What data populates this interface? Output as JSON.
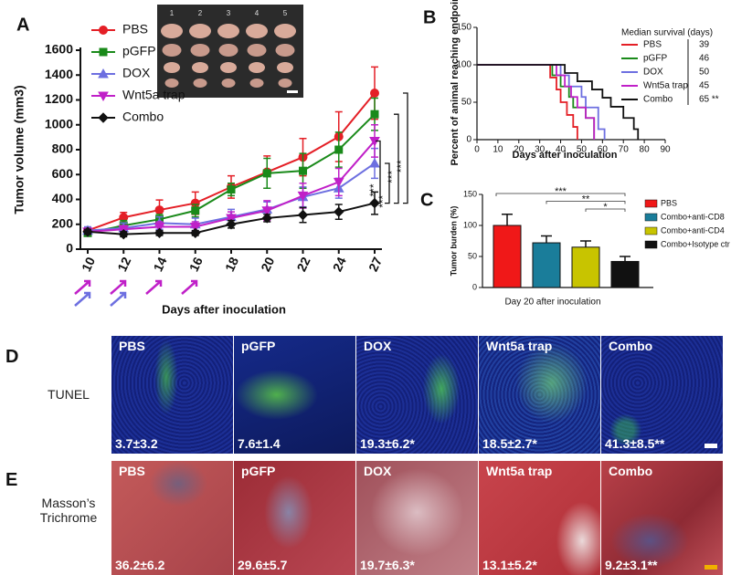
{
  "chart_data": [
    {
      "panel": "A",
      "type": "line",
      "ylabel": "Tumor volume (mm3)",
      "xlabel": "Days after inoculation",
      "categories": [
        "10",
        "12",
        "14",
        "16",
        "18",
        "20",
        "22",
        "24",
        "27"
      ],
      "ylim": [
        0,
        1600
      ],
      "yticks": [
        0,
        200,
        400,
        600,
        800,
        1000,
        1200,
        1400,
        1600
      ],
      "series": [
        {
          "name": "PBS",
          "color": "#e41f26",
          "marker": "circle",
          "values": [
            150,
            255,
            315,
            370,
            500,
            620,
            740,
            905,
            1255
          ],
          "errors": [
            25,
            40,
            80,
            90,
            90,
            130,
            150,
            200,
            210
          ]
        },
        {
          "name": "pGFP",
          "color": "#1a8a1a",
          "marker": "square",
          "values": [
            130,
            190,
            240,
            310,
            480,
            610,
            630,
            800,
            1085
          ],
          "errors": [
            20,
            40,
            40,
            50,
            50,
            120,
            140,
            140,
            130
          ]
        },
        {
          "name": "DOX",
          "color": "#6d6fe0",
          "marker": "triangle",
          "values": [
            150,
            170,
            210,
            200,
            260,
            320,
            420,
            490,
            690
          ],
          "errors": [
            30,
            40,
            50,
            50,
            60,
            60,
            80,
            80,
            120
          ]
        },
        {
          "name": "Wnt5a trap",
          "color": "#c020c8",
          "marker": "triangle-down",
          "values": [
            140,
            160,
            180,
            180,
            250,
            310,
            430,
            540,
            870
          ],
          "errors": [
            20,
            30,
            40,
            40,
            50,
            80,
            100,
            110,
            130
          ]
        },
        {
          "name": "Combo",
          "color": "#111111",
          "marker": "diamond",
          "values": [
            140,
            120,
            130,
            130,
            200,
            250,
            275,
            300,
            370
          ],
          "errors": [
            20,
            20,
            20,
            20,
            30,
            30,
            60,
            60,
            90
          ]
        }
      ],
      "annotations": [
        "***",
        "***",
        "***",
        "***"
      ],
      "inset_labels": [
        "1",
        "2",
        "3",
        "4",
        "5"
      ]
    },
    {
      "panel": "B",
      "type": "step",
      "ylabel": "Percent of animal reaching endpoint",
      "xlabel": "Days after inoculation",
      "xlim": [
        0,
        90
      ],
      "xticks": [
        0,
        10,
        20,
        30,
        40,
        50,
        60,
        70,
        80,
        90
      ],
      "ylim": [
        0,
        150
      ],
      "yticks": [
        0,
        50,
        100,
        150
      ],
      "legend_title": "Median survival (days)",
      "series": [
        {
          "name": "PBS",
          "color": "#e41f26",
          "x": [
            0,
            35,
            38,
            40,
            43,
            46,
            48
          ],
          "values": [
            100,
            83,
            67,
            50,
            33,
            17,
            0
          ],
          "median": 39
        },
        {
          "name": "pGFP",
          "color": "#1a8a1a",
          "x": [
            0,
            36,
            40,
            44,
            46,
            52,
            56
          ],
          "values": [
            100,
            86,
            71,
            57,
            43,
            29,
            0
          ],
          "median": 46
        },
        {
          "name": "DOX",
          "color": "#6d6fe0",
          "x": [
            0,
            40,
            44,
            50,
            52,
            58,
            61
          ],
          "values": [
            100,
            86,
            71,
            57,
            43,
            14,
            0
          ],
          "median": 50
        },
        {
          "name": "Wnt5a trap",
          "color": "#c020c8",
          "x": [
            0,
            38,
            42,
            45,
            48,
            52,
            56
          ],
          "values": [
            100,
            86,
            71,
            57,
            43,
            29,
            0
          ],
          "median": 45
        },
        {
          "name": "Combo",
          "color": "#111111",
          "x": [
            0,
            42,
            48,
            55,
            60,
            64,
            70,
            75,
            77
          ],
          "values": [
            100,
            89,
            78,
            67,
            56,
            44,
            29,
            14,
            0
          ],
          "median": 65,
          "median_label": "65 **"
        }
      ]
    },
    {
      "panel": "C",
      "type": "bar",
      "ylabel": "Tumor burden (%)",
      "xlabel": "Day 20 after inoculation",
      "categories": [
        null
      ],
      "ylim": [
        0,
        150
      ],
      "yticks": [
        0,
        50,
        100,
        150
      ],
      "series": [
        {
          "name": "PBS",
          "color": "#f01818",
          "values": [
            100
          ],
          "errors": [
            18
          ]
        },
        {
          "name": "Combo+anti-CD8",
          "color": "#1a7d9a",
          "values": [
            72
          ],
          "errors": [
            11
          ]
        },
        {
          "name": "Combo+anti-CD4",
          "color": "#c8c400",
          "values": [
            65
          ],
          "errors": [
            10
          ]
        },
        {
          "name": "Combo+Isotype ctr",
          "color": "#111111",
          "values": [
            42
          ],
          "errors": [
            8
          ]
        }
      ],
      "annotations": [
        "***",
        "**",
        "*"
      ]
    }
  ],
  "panels": [
    {
      "letter": "D",
      "row_label": "TUNEL",
      "images": [
        {
          "title": "PBS",
          "stat": "3.7±3.2"
        },
        {
          "title": "pGFP",
          "stat": "7.6±1.4"
        },
        {
          "title": "DOX",
          "stat": "19.3±6.2*"
        },
        {
          "title": "Wnt5a trap",
          "stat": "18.5±2.7*"
        },
        {
          "title": "Combo",
          "stat": "41.3±8.5**"
        }
      ]
    },
    {
      "letter": "E",
      "row_label": "Masson’s Trichrome",
      "images": [
        {
          "title": "PBS",
          "stat": "36.2±6.2"
        },
        {
          "title": "pGFP",
          "stat": "29.6±5.7"
        },
        {
          "title": "DOX",
          "stat": "19.7±6.3*"
        },
        {
          "title": "Wnt5a trap",
          "stat": "13.1±5.2*"
        },
        {
          "title": "Combo",
          "stat": "9.2±3.1**"
        }
      ]
    }
  ]
}
